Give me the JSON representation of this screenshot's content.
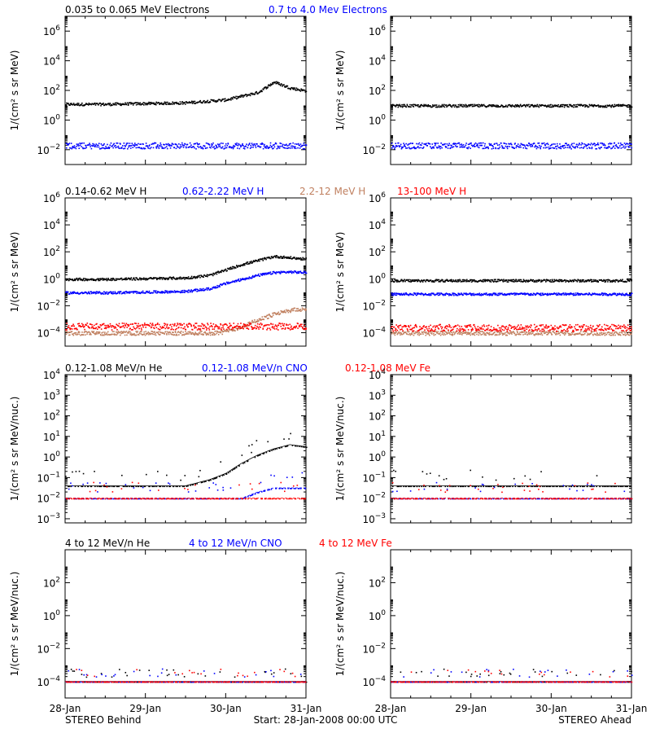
{
  "x_ticks": [
    "28-Jan",
    "29-Jan",
    "30-Jan",
    "31-Jan"
  ],
  "footer": {
    "left": "STEREO Behind",
    "center": "Start: 28-Jan-2008 00:00 UTC",
    "right": "STEREO Ahead"
  },
  "rows": [
    {
      "ylabel": "1/(cm² s sr MeV)",
      "ylog_range": [
        -3,
        7
      ],
      "ytick_exponents": [
        -2,
        0,
        2,
        4,
        6
      ],
      "legend": [
        {
          "label": "0.035 to 0.065 MeV Electrons",
          "color": "#000000"
        },
        {
          "label": "0.7 to 4.0 Mev Electrons",
          "color": "#0000ff"
        }
      ]
    },
    {
      "ylabel": "1/(cm² s sr MeV)",
      "ylog_range": [
        -5,
        6
      ],
      "ytick_exponents": [
        -4,
        -2,
        0,
        2,
        4,
        6
      ],
      "legend": [
        {
          "label": "0.14-0.62 MeV H",
          "color": "#000000"
        },
        {
          "label": "0.62-2.22 MeV H",
          "color": "#0000ff"
        },
        {
          "label": "2.2-12 MeV H",
          "color": "#c08060"
        },
        {
          "label": "13-100 MeV H",
          "color": "#ff0000"
        }
      ]
    },
    {
      "ylabel": "1/(cm² s sr MeV/nuc.)",
      "ylog_range": [
        -3.2,
        4
      ],
      "ytick_exponents": [
        -3,
        -2,
        -1,
        0,
        1,
        2,
        3,
        4
      ],
      "legend": [
        {
          "label": "0.12-1.08 MeV/n He",
          "color": "#000000"
        },
        {
          "label": "0.12-1.08 MeV/n CNO",
          "color": "#0000ff"
        },
        {
          "label": "0.12-1.08 MeV Fe",
          "color": "#ff0000"
        }
      ]
    },
    {
      "ylabel": "1/(cm² s sr MeV/nuc.)",
      "ylog_range": [
        -5,
        4
      ],
      "ytick_exponents": [
        -4,
        -2,
        0,
        2
      ],
      "legend": [
        {
          "label": "4 to 12 MeV/n He",
          "color": "#000000"
        },
        {
          "label": "4 to 12 MeV/n CNO",
          "color": "#0000ff"
        },
        {
          "label": "4 to 12 MeV Fe",
          "color": "#ff0000"
        }
      ]
    }
  ],
  "chart_data": [
    {
      "type": "scatter",
      "panel": "electrons-behind",
      "x": [
        0,
        0.5,
        1.0,
        1.5,
        2.0,
        2.4,
        2.6,
        2.8,
        3.0
      ],
      "series": [
        {
          "name": "0.035 to 0.065 MeV Electrons",
          "ylog": [
            1.1,
            1.1,
            1.15,
            1.2,
            1.4,
            1.9,
            2.6,
            2.2,
            2.0
          ]
        },
        {
          "name": "0.7 to 4.0 Mev Electrons",
          "ylog": [
            -1.7,
            -1.7,
            -1.7,
            -1.7,
            -1.7,
            -1.7,
            -1.7,
            -1.7,
            -1.7
          ]
        }
      ]
    },
    {
      "type": "scatter",
      "panel": "electrons-ahead",
      "x": [
        0,
        1.0,
        2.0,
        3.0
      ],
      "series": [
        {
          "name": "0.035 to 0.065 MeV Electrons",
          "ylog": [
            1.0,
            1.0,
            1.0,
            1.0
          ]
        },
        {
          "name": "0.7 to 4.0 Mev Electrons",
          "ylog": [
            -1.7,
            -1.7,
            -1.7,
            -1.7
          ]
        }
      ]
    },
    {
      "type": "scatter",
      "panel": "protons-behind",
      "x": [
        0,
        0.5,
        1.0,
        1.5,
        1.8,
        2.0,
        2.2,
        2.4,
        2.6,
        2.8,
        3.0
      ],
      "series": [
        {
          "name": "0.14-0.62 MeV H",
          "ylog": [
            0,
            0,
            0.05,
            0.1,
            0.3,
            0.7,
            1.1,
            1.4,
            1.7,
            1.6,
            1.5
          ]
        },
        {
          "name": "0.62-2.22 MeV H",
          "ylog": [
            -1,
            -1,
            -0.95,
            -0.9,
            -0.7,
            -0.3,
            0,
            0.3,
            0.5,
            0.55,
            0.5
          ]
        },
        {
          "name": "2.2-12 MeV H",
          "ylog": [
            -4,
            -4,
            -4,
            -4,
            -4,
            -3.9,
            -3.5,
            -3,
            -2.6,
            -2.3,
            -2.2
          ]
        },
        {
          "name": "13-100 MeV H",
          "ylog": [
            -3.5,
            -3.5,
            -3.5,
            -3.5,
            -3.5,
            -3.5,
            -3.5,
            -3.5,
            -3.5,
            -3.5,
            -3.5
          ]
        }
      ]
    },
    {
      "type": "scatter",
      "panel": "protons-ahead",
      "x": [
        0,
        1.0,
        2.0,
        3.0
      ],
      "series": [
        {
          "name": "0.14-0.62 MeV H",
          "ylog": [
            -0.1,
            -0.1,
            -0.1,
            -0.1
          ]
        },
        {
          "name": "0.62-2.22 MeV H",
          "ylog": [
            -1.1,
            -1.1,
            -1.1,
            -1.1
          ]
        },
        {
          "name": "2.2-12 MeV H",
          "ylog": [
            -4,
            -4,
            -4,
            -4
          ]
        },
        {
          "name": "13-100 MeV H",
          "ylog": [
            -3.6,
            -3.6,
            -3.6,
            -3.6
          ]
        }
      ]
    },
    {
      "type": "scatter",
      "panel": "heavy-low-behind",
      "x": [
        0,
        0.5,
        1.0,
        1.5,
        1.8,
        2.0,
        2.2,
        2.4,
        2.6,
        2.8,
        3.0
      ],
      "series": [
        {
          "name": "0.12-1.08 MeV/n He",
          "ylog": [
            -1.4,
            -1.4,
            -1.4,
            -1.4,
            -1.1,
            -0.8,
            -0.3,
            0.1,
            0.4,
            0.6,
            0.5
          ]
        },
        {
          "name": "0.12-1.08 MeV/n CNO",
          "ylog": [
            -2,
            -2,
            -2,
            -2,
            -2,
            -2,
            -2,
            -1.7,
            -1.5,
            -1.5,
            -1.5
          ]
        },
        {
          "name": "0.12-1.08 MeV Fe",
          "ylog": [
            -2,
            -2,
            -2,
            -2,
            -2,
            -2,
            -2,
            -2,
            -2,
            -2,
            -2
          ]
        }
      ]
    },
    {
      "type": "scatter",
      "panel": "heavy-low-ahead",
      "x": [
        0,
        1.0,
        2.0,
        3.0
      ],
      "series": [
        {
          "name": "0.12-1.08 MeV/n He",
          "ylog": [
            -1.4,
            -1.4,
            -1.4,
            -1.4
          ]
        },
        {
          "name": "0.12-1.08 MeV/n CNO",
          "ylog": [
            -2,
            -2,
            -2,
            -2
          ]
        },
        {
          "name": "0.12-1.08 MeV Fe",
          "ylog": [
            -2,
            -2,
            -2,
            -2
          ]
        }
      ]
    },
    {
      "type": "scatter",
      "panel": "heavy-high-behind",
      "x": [
        0,
        1.0,
        2.0,
        3.0
      ],
      "series": [
        {
          "name": "4 to 12 MeV/n He",
          "ylog": [
            -4,
            -4,
            -4,
            -4
          ]
        },
        {
          "name": "4 to 12 MeV/n CNO",
          "ylog": [
            -4,
            -4,
            -4,
            -4
          ]
        },
        {
          "name": "4 to 12 MeV Fe",
          "ylog": [
            -4,
            -4,
            -4,
            -4
          ]
        }
      ]
    },
    {
      "type": "scatter",
      "panel": "heavy-high-ahead",
      "x": [
        0,
        1.0,
        2.0,
        3.0
      ],
      "series": [
        {
          "name": "4 to 12 MeV/n He",
          "ylog": [
            -4,
            -4,
            -4,
            -4
          ]
        },
        {
          "name": "4 to 12 MeV/n CNO",
          "ylog": [
            -4,
            -4,
            -4,
            -4
          ]
        },
        {
          "name": "4 to 12 MeV Fe",
          "ylog": [
            -4,
            -4,
            -4,
            -4
          ]
        }
      ]
    }
  ]
}
